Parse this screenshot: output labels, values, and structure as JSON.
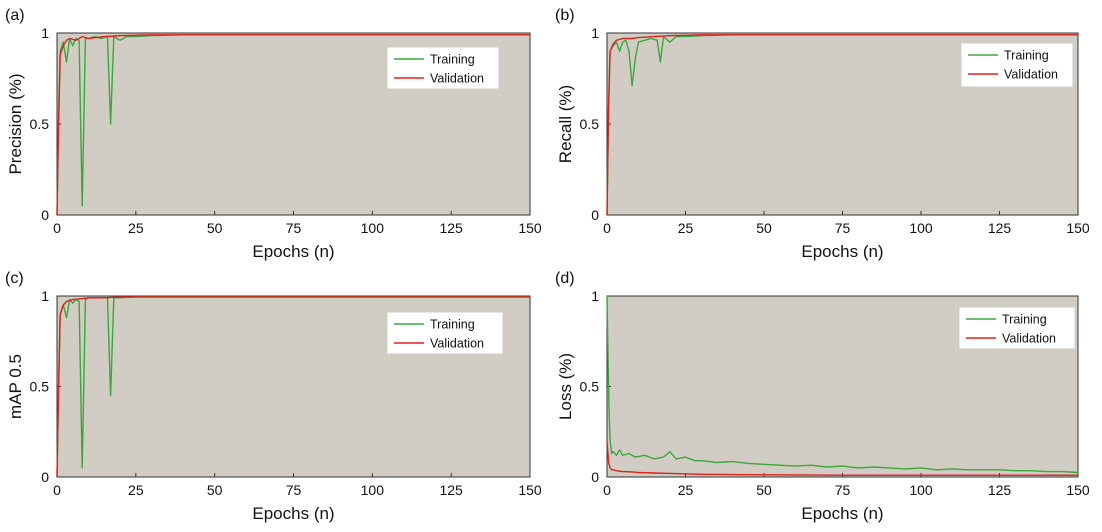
{
  "chart_data": [
    {
      "type": "line",
      "panel_label": "(a)",
      "xlabel": "Epochs (n)",
      "ylabel": "Precision (%)",
      "xlim": [
        0,
        150
      ],
      "ylim": [
        0,
        1
      ],
      "xticks": [
        "0",
        "25",
        "50",
        "75",
        "100",
        "125",
        "150"
      ],
      "yticks": [
        "0",
        "0.5",
        "1"
      ],
      "legend_position": "top-right",
      "series": [
        {
          "name": "Training",
          "color": "#3aa83a",
          "x": [
            0,
            0.5,
            1,
            2,
            3,
            4,
            5,
            6,
            7,
            8,
            9,
            10,
            12,
            14,
            16,
            17,
            18,
            20,
            22,
            25,
            30,
            40,
            50,
            60,
            75,
            90,
            100,
            125,
            150
          ],
          "y": [
            0,
            0.55,
            0.9,
            0.95,
            0.84,
            0.97,
            0.93,
            0.97,
            0.96,
            0.05,
            0.97,
            0.97,
            0.98,
            0.97,
            0.98,
            0.5,
            0.98,
            0.96,
            0.98,
            0.98,
            0.985,
            0.99,
            0.99,
            0.99,
            0.99,
            0.99,
            0.99,
            0.99,
            0.99
          ]
        },
        {
          "name": "Validation",
          "color": "#e0201b",
          "x": [
            0,
            0.5,
            1,
            2,
            3,
            4,
            6,
            8,
            10,
            15,
            20,
            30,
            50,
            75,
            100,
            125,
            150
          ],
          "y": [
            0,
            0.5,
            0.88,
            0.93,
            0.96,
            0.97,
            0.96,
            0.98,
            0.97,
            0.98,
            0.985,
            0.99,
            0.99,
            0.99,
            0.99,
            0.99,
            0.99
          ]
        }
      ]
    },
    {
      "type": "line",
      "panel_label": "(b)",
      "xlabel": "Epochs (n)",
      "ylabel": "Recall (%)",
      "xlim": [
        0,
        150
      ],
      "ylim": [
        0,
        1
      ],
      "xticks": [
        "0",
        "25",
        "50",
        "75",
        "100",
        "125",
        "150"
      ],
      "yticks": [
        "0",
        "0.5",
        "1"
      ],
      "legend_position": "top-right",
      "series": [
        {
          "name": "Training",
          "color": "#3aa83a",
          "x": [
            0,
            0.5,
            1,
            2,
            3,
            4,
            5,
            6,
            7,
            8,
            9,
            10,
            12,
            14,
            16,
            17,
            18,
            20,
            22,
            25,
            30,
            40,
            50,
            75,
            100,
            125,
            150
          ],
          "y": [
            0,
            0.6,
            0.9,
            0.93,
            0.95,
            0.9,
            0.95,
            0.96,
            0.9,
            0.71,
            0.86,
            0.95,
            0.96,
            0.97,
            0.96,
            0.84,
            0.98,
            0.95,
            0.98,
            0.98,
            0.985,
            0.99,
            0.99,
            0.99,
            0.99,
            0.99,
            0.99
          ]
        },
        {
          "name": "Validation",
          "color": "#e0201b",
          "x": [
            0,
            0.5,
            1,
            2,
            3,
            5,
            8,
            10,
            15,
            20,
            30,
            50,
            75,
            100,
            125,
            150
          ],
          "y": [
            0,
            0.6,
            0.9,
            0.94,
            0.96,
            0.97,
            0.97,
            0.975,
            0.98,
            0.985,
            0.99,
            0.99,
            0.99,
            0.99,
            0.99,
            0.99
          ]
        }
      ]
    },
    {
      "type": "line",
      "panel_label": "(c)",
      "xlabel": "Epochs (n)",
      "ylabel": "mAP 0.5",
      "xlim": [
        0,
        150
      ],
      "ylim": [
        0,
        1
      ],
      "xticks": [
        "0",
        "25",
        "50",
        "75",
        "100",
        "125",
        "150"
      ],
      "yticks": [
        "0",
        "0.5",
        "1"
      ],
      "legend_position": "top-right",
      "series": [
        {
          "name": "Training",
          "color": "#3aa83a",
          "x": [
            0,
            0.5,
            1,
            2,
            3,
            4,
            5,
            6,
            7,
            8,
            9,
            10,
            12,
            14,
            16,
            17,
            18,
            20,
            25,
            30,
            50,
            75,
            100,
            125,
            150
          ],
          "y": [
            0,
            0.5,
            0.9,
            0.95,
            0.88,
            0.98,
            0.96,
            0.98,
            0.97,
            0.05,
            0.98,
            0.99,
            0.99,
            0.99,
            0.99,
            0.45,
            0.99,
            0.99,
            0.995,
            0.995,
            0.995,
            0.995,
            0.995,
            0.995,
            0.995
          ]
        },
        {
          "name": "Validation",
          "color": "#e0201b",
          "x": [
            0,
            0.5,
            1,
            2,
            3,
            5,
            8,
            10,
            15,
            20,
            30,
            50,
            75,
            100,
            125,
            150
          ],
          "y": [
            0,
            0.5,
            0.9,
            0.95,
            0.97,
            0.98,
            0.985,
            0.99,
            0.99,
            0.995,
            0.995,
            0.995,
            0.995,
            0.995,
            0.995,
            0.995
          ]
        }
      ]
    },
    {
      "type": "line",
      "panel_label": "(d)",
      "xlabel": "Epochs (n)",
      "ylabel": "Loss (%)",
      "xlim": [
        0,
        150
      ],
      "ylim": [
        0,
        1
      ],
      "xticks": [
        "0",
        "25",
        "50",
        "75",
        "100",
        "125",
        "150"
      ],
      "yticks": [
        "0",
        "0.5",
        "1"
      ],
      "legend_position": "top-right",
      "series": [
        {
          "name": "Training",
          "color": "#3aa83a",
          "x": [
            0,
            0.3,
            0.6,
            1,
            1.5,
            2,
            3,
            4,
            5,
            7,
            9,
            12,
            15,
            18,
            20,
            22,
            25,
            28,
            30,
            35,
            40,
            45,
            50,
            55,
            60,
            65,
            70,
            75,
            80,
            85,
            90,
            95,
            100,
            105,
            110,
            115,
            120,
            125,
            130,
            135,
            140,
            145,
            150
          ],
          "y": [
            1,
            0.7,
            0.4,
            0.2,
            0.13,
            0.14,
            0.12,
            0.15,
            0.12,
            0.13,
            0.11,
            0.12,
            0.1,
            0.11,
            0.14,
            0.1,
            0.11,
            0.09,
            0.09,
            0.08,
            0.085,
            0.075,
            0.07,
            0.065,
            0.06,
            0.065,
            0.055,
            0.06,
            0.05,
            0.055,
            0.05,
            0.045,
            0.05,
            0.04,
            0.045,
            0.04,
            0.04,
            0.04,
            0.035,
            0.035,
            0.03,
            0.03,
            0.025
          ]
        },
        {
          "name": "Validation",
          "color": "#e0201b",
          "x": [
            0,
            0.5,
            1,
            1.5,
            2,
            3,
            5,
            8,
            10,
            15,
            20,
            30,
            50,
            75,
            100,
            125,
            150
          ],
          "y": [
            0.2,
            0.08,
            0.05,
            0.04,
            0.04,
            0.035,
            0.03,
            0.028,
            0.025,
            0.022,
            0.02,
            0.015,
            0.012,
            0.01,
            0.01,
            0.01,
            0.01
          ]
        }
      ]
    }
  ]
}
